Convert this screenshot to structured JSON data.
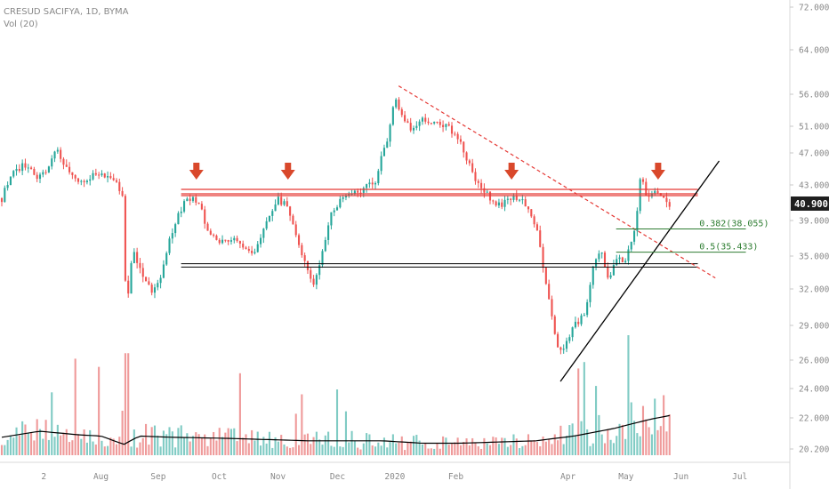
{
  "chart_data": {
    "type": "candlestick",
    "symbol_line": "CRESUD SACIFYA, 1D, BYMA",
    "volume_label": "Vol (20)",
    "last_price": "40.900",
    "y_ticks": [
      {
        "value": 20.2,
        "label": "20.200"
      },
      {
        "value": 22,
        "label": "22.000"
      },
      {
        "value": 24,
        "label": "24.000"
      },
      {
        "value": 26,
        "label": "26.000"
      },
      {
        "value": 29,
        "label": "29.000"
      },
      {
        "value": 32,
        "label": "32.000"
      },
      {
        "value": 35,
        "label": "35.000"
      },
      {
        "value": 39,
        "label": "39.000"
      },
      {
        "value": 43,
        "label": "43.000"
      },
      {
        "value": 47,
        "label": "47.000"
      },
      {
        "value": 51,
        "label": "51.000"
      },
      {
        "value": 56,
        "label": "56.000"
      },
      {
        "value": 64,
        "label": "64.000"
      },
      {
        "value": 72,
        "label": "72.000"
      }
    ],
    "x_labels": [
      {
        "label": "2",
        "t": 0.055
      },
      {
        "label": "Aug",
        "t": 0.13
      },
      {
        "label": "Sep",
        "t": 0.205
      },
      {
        "label": "Oct",
        "t": 0.285
      },
      {
        "label": "Nov",
        "t": 0.362
      },
      {
        "label": "Dec",
        "t": 0.44
      },
      {
        "label": "2020",
        "t": 0.515
      },
      {
        "label": "Feb",
        "t": 0.595
      },
      {
        "label": "Apr",
        "t": 0.742
      },
      {
        "label": "May",
        "t": 0.818
      },
      {
        "label": "Jun",
        "t": 0.89
      },
      {
        "label": "Jul",
        "t": 0.967
      }
    ],
    "price_path": [
      [
        0.0,
        41.5
      ],
      [
        0.015,
        44.5
      ],
      [
        0.03,
        45.5
      ],
      [
        0.045,
        44.0
      ],
      [
        0.06,
        45.0
      ],
      [
        0.072,
        47.5
      ],
      [
        0.085,
        45.0
      ],
      [
        0.1,
        43.5
      ],
      [
        0.115,
        44.0
      ],
      [
        0.13,
        44.5
      ],
      [
        0.145,
        44.0
      ],
      [
        0.158,
        41.5
      ],
      [
        0.163,
        30.0
      ],
      [
        0.172,
        36.0
      ],
      [
        0.18,
        34.0
      ],
      [
        0.19,
        32.5
      ],
      [
        0.198,
        31.5
      ],
      [
        0.21,
        33.5
      ],
      [
        0.22,
        37.0
      ],
      [
        0.232,
        40.0
      ],
      [
        0.245,
        41.5
      ],
      [
        0.26,
        41.0
      ],
      [
        0.27,
        37.5
      ],
      [
        0.285,
        36.5
      ],
      [
        0.3,
        37.0
      ],
      [
        0.315,
        36.0
      ],
      [
        0.33,
        35.5
      ],
      [
        0.345,
        38.5
      ],
      [
        0.36,
        41.5
      ],
      [
        0.375,
        40.5
      ],
      [
        0.39,
        36.0
      ],
      [
        0.4,
        33.5
      ],
      [
        0.41,
        32.5
      ],
      [
        0.42,
        35.5
      ],
      [
        0.43,
        39.5
      ],
      [
        0.445,
        41.5
      ],
      [
        0.46,
        42.0
      ],
      [
        0.475,
        42.5
      ],
      [
        0.49,
        43.5
      ],
      [
        0.505,
        49.0
      ],
      [
        0.515,
        55.5
      ],
      [
        0.522,
        53.0
      ],
      [
        0.535,
        50.5
      ],
      [
        0.55,
        52.0
      ],
      [
        0.565,
        51.5
      ],
      [
        0.58,
        51.0
      ],
      [
        0.595,
        50.0
      ],
      [
        0.61,
        46.0
      ],
      [
        0.625,
        43.0
      ],
      [
        0.64,
        41.5
      ],
      [
        0.655,
        40.5
      ],
      [
        0.67,
        42.0
      ],
      [
        0.685,
        41.0
      ],
      [
        0.7,
        38.5
      ],
      [
        0.71,
        33.5
      ],
      [
        0.72,
        30.0
      ],
      [
        0.73,
        26.5
      ],
      [
        0.74,
        27.5
      ],
      [
        0.75,
        29.0
      ],
      [
        0.765,
        30.0
      ],
      [
        0.775,
        34.5
      ],
      [
        0.785,
        35.5
      ],
      [
        0.795,
        33.0
      ],
      [
        0.808,
        35.0
      ],
      [
        0.818,
        34.5
      ],
      [
        0.83,
        38.5
      ],
      [
        0.838,
        44.5
      ],
      [
        0.845,
        41.0
      ],
      [
        0.855,
        42.0
      ],
      [
        0.865,
        41.5
      ],
      [
        0.875,
        40.9
      ]
    ],
    "volume_path": [
      [
        0.0,
        0.15
      ],
      [
        0.05,
        0.2
      ],
      [
        0.1,
        0.17
      ],
      [
        0.13,
        0.16
      ],
      [
        0.16,
        0.09
      ],
      [
        0.18,
        0.16
      ],
      [
        0.22,
        0.15
      ],
      [
        0.3,
        0.14
      ],
      [
        0.4,
        0.12
      ],
      [
        0.5,
        0.12
      ],
      [
        0.55,
        0.1
      ],
      [
        0.6,
        0.1
      ],
      [
        0.7,
        0.12
      ],
      [
        0.75,
        0.16
      ],
      [
        0.8,
        0.22
      ],
      [
        0.85,
        0.3
      ],
      [
        0.875,
        0.33
      ]
    ],
    "resistance_red": [
      42.5,
      42.0,
      41.8
    ],
    "support_black": [
      34.3,
      34.0
    ],
    "fib_levels": [
      {
        "value": 38.055,
        "label": "0.382(38.055)"
      },
      {
        "value": 35.433,
        "label": "0.5(35.433)"
      }
    ],
    "downtrend_line": {
      "from": [
        0.52,
        57.5
      ],
      "to": [
        0.935,
        33.0
      ]
    },
    "uptrend_line": {
      "from": [
        0.732,
        24.5
      ],
      "to": [
        0.94,
        46.0
      ]
    },
    "arrows_t": [
      0.255,
      0.375,
      0.668,
      0.86
    ],
    "colors": {
      "up": "#26a69a",
      "down": "#ef5350",
      "resistance": "#e53935",
      "support": "#000000",
      "fib": "#2e7d32",
      "arrow": "#d9482b",
      "volume_up": "#80cbc4",
      "volume_down": "#ef9a9a",
      "last_price_bg": "#1f1f1f"
    }
  }
}
